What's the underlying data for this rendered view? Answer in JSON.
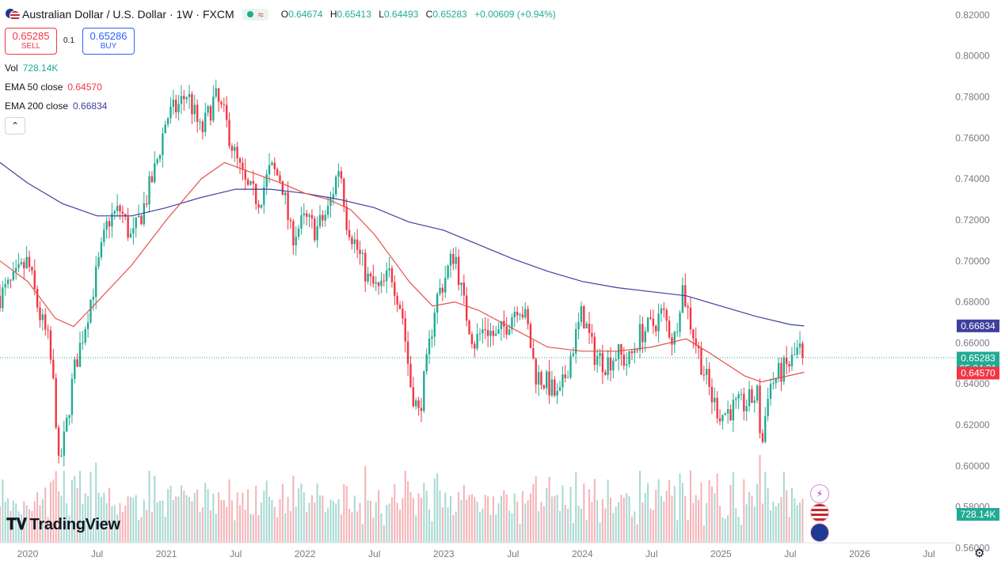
{
  "header": {
    "title": "Australian Dollar / U.S. Dollar · 1W · FXCM",
    "status_icon": "circle-dot",
    "wave_icon": "≈",
    "ohlc": {
      "o_label": "O",
      "o": "0.64674",
      "h_label": "H",
      "h": "0.65413",
      "l_label": "L",
      "l": "0.64493",
      "c_label": "C",
      "c": "0.65283",
      "change": "+0.00609 (+0.94%)"
    }
  },
  "trade": {
    "sell_price": "0.65285",
    "sell_label": "SELL",
    "spread": "0.1",
    "buy_price": "0.65286",
    "buy_label": "BUY"
  },
  "indicators": {
    "vol_label": "Vol",
    "vol_value": "728.14K",
    "ema50_label": "EMA 50 close",
    "ema50_value": "0.64570",
    "ema200_label": "EMA 200 close",
    "ema200_value": "0.66834"
  },
  "brand": {
    "logo_text": "TradingView"
  },
  "colors": {
    "up": "#22ab94",
    "down": "#f23645",
    "ema50": "#e5504a",
    "ema200": "#3f3f9f",
    "vol_up": "#a7d9d2",
    "vol_down": "#f5b2b6"
  },
  "chart_data": {
    "type": "candlestick",
    "symbol": "AUDUSD",
    "timeframe": "1W",
    "y_ticks": [
      "0.82000",
      "0.80000",
      "0.78000",
      "0.76000",
      "0.74000",
      "0.72000",
      "0.70000",
      "0.68000",
      "0.66000",
      "0.64000",
      "0.62000",
      "0.60000",
      "0.58000",
      "0.56000"
    ],
    "x_ticks": [
      {
        "label": "2020",
        "t": 2020.0
      },
      {
        "label": "Jul",
        "t": 2020.5
      },
      {
        "label": "2021",
        "t": 2021.0
      },
      {
        "label": "Jul",
        "t": 2021.5
      },
      {
        "label": "2022",
        "t": 2022.0
      },
      {
        "label": "Jul",
        "t": 2022.5
      },
      {
        "label": "2023",
        "t": 2023.0
      },
      {
        "label": "Jul",
        "t": 2023.5
      },
      {
        "label": "2024",
        "t": 2024.0
      },
      {
        "label": "Jul",
        "t": 2024.5
      },
      {
        "label": "2025",
        "t": 2025.0
      },
      {
        "label": "Jul",
        "t": 2025.5
      },
      {
        "label": "2026",
        "t": 2026.0
      },
      {
        "label": "Jul",
        "t": 2026.5
      }
    ],
    "x_range": [
      2019.8,
      2026.7
    ],
    "y_range": [
      0.5517,
      0.8273
    ],
    "close_path": [
      [
        2019.8,
        0.683
      ],
      [
        2019.9,
        0.69
      ],
      [
        2020.0,
        0.7
      ],
      [
        2020.08,
        0.675
      ],
      [
        2020.15,
        0.66
      ],
      [
        2020.2,
        0.63
      ],
      [
        2020.22,
        0.598
      ],
      [
        2020.27,
        0.615
      ],
      [
        2020.33,
        0.645
      ],
      [
        2020.4,
        0.665
      ],
      [
        2020.5,
        0.695
      ],
      [
        2020.58,
        0.72
      ],
      [
        2020.67,
        0.725
      ],
      [
        2020.75,
        0.71
      ],
      [
        2020.83,
        0.725
      ],
      [
        2020.92,
        0.745
      ],
      [
        2021.0,
        0.77
      ],
      [
        2021.08,
        0.775
      ],
      [
        2021.15,
        0.782
      ],
      [
        2021.25,
        0.762
      ],
      [
        2021.35,
        0.78
      ],
      [
        2021.42,
        0.77
      ],
      [
        2021.5,
        0.75
      ],
      [
        2021.58,
        0.735
      ],
      [
        2021.67,
        0.73
      ],
      [
        2021.75,
        0.745
      ],
      [
        2021.83,
        0.74
      ],
      [
        2021.9,
        0.712
      ],
      [
        2022.0,
        0.72
      ],
      [
        2022.08,
        0.715
      ],
      [
        2022.17,
        0.725
      ],
      [
        2022.25,
        0.748
      ],
      [
        2022.3,
        0.72
      ],
      [
        2022.38,
        0.705
      ],
      [
        2022.46,
        0.69
      ],
      [
        2022.54,
        0.685
      ],
      [
        2022.62,
        0.695
      ],
      [
        2022.7,
        0.675
      ],
      [
        2022.76,
        0.64
      ],
      [
        2022.82,
        0.625
      ],
      [
        2022.88,
        0.65
      ],
      [
        2022.94,
        0.68
      ],
      [
        2023.0,
        0.69
      ],
      [
        2023.08,
        0.705
      ],
      [
        2023.14,
        0.68
      ],
      [
        2023.22,
        0.66
      ],
      [
        2023.3,
        0.668
      ],
      [
        2023.38,
        0.662
      ],
      [
        2023.46,
        0.67
      ],
      [
        2023.54,
        0.68
      ],
      [
        2023.6,
        0.67
      ],
      [
        2023.66,
        0.645
      ],
      [
        2023.75,
        0.64
      ],
      [
        2023.83,
        0.632
      ],
      [
        2023.9,
        0.65
      ],
      [
        2024.0,
        0.675
      ],
      [
        2024.08,
        0.655
      ],
      [
        2024.17,
        0.65
      ],
      [
        2024.25,
        0.655
      ],
      [
        2024.33,
        0.65
      ],
      [
        2024.42,
        0.665
      ],
      [
        2024.5,
        0.668
      ],
      [
        2024.58,
        0.675
      ],
      [
        2024.66,
        0.66
      ],
      [
        2024.72,
        0.688
      ],
      [
        2024.78,
        0.67
      ],
      [
        2024.86,
        0.65
      ],
      [
        2024.94,
        0.632
      ],
      [
        2025.0,
        0.625
      ],
      [
        2025.08,
        0.628
      ],
      [
        2025.17,
        0.63
      ],
      [
        2025.27,
        0.635
      ],
      [
        2025.29,
        0.605
      ],
      [
        2025.34,
        0.638
      ],
      [
        2025.42,
        0.645
      ],
      [
        2025.5,
        0.65
      ],
      [
        2025.56,
        0.657
      ],
      [
        2025.6,
        0.653
      ]
    ],
    "ema50_path": [
      [
        2019.8,
        0.7
      ],
      [
        2020.0,
        0.69
      ],
      [
        2020.2,
        0.672
      ],
      [
        2020.33,
        0.668
      ],
      [
        2020.5,
        0.68
      ],
      [
        2020.75,
        0.698
      ],
      [
        2021.0,
        0.72
      ],
      [
        2021.25,
        0.74
      ],
      [
        2021.42,
        0.748
      ],
      [
        2021.58,
        0.744
      ],
      [
        2021.83,
        0.738
      ],
      [
        2022.0,
        0.733
      ],
      [
        2022.17,
        0.73
      ],
      [
        2022.33,
        0.725
      ],
      [
        2022.5,
        0.713
      ],
      [
        2022.75,
        0.69
      ],
      [
        2022.92,
        0.678
      ],
      [
        2023.08,
        0.68
      ],
      [
        2023.25,
        0.676
      ],
      [
        2023.5,
        0.667
      ],
      [
        2023.75,
        0.658
      ],
      [
        2024.0,
        0.656
      ],
      [
        2024.25,
        0.656
      ],
      [
        2024.5,
        0.658
      ],
      [
        2024.75,
        0.662
      ],
      [
        2024.92,
        0.655
      ],
      [
        2025.17,
        0.644
      ],
      [
        2025.29,
        0.641
      ],
      [
        2025.42,
        0.643
      ],
      [
        2025.6,
        0.6457
      ]
    ],
    "ema200_path": [
      [
        2019.8,
        0.748
      ],
      [
        2020.0,
        0.738
      ],
      [
        2020.25,
        0.728
      ],
      [
        2020.5,
        0.722
      ],
      [
        2020.75,
        0.722
      ],
      [
        2021.0,
        0.726
      ],
      [
        2021.25,
        0.731
      ],
      [
        2021.5,
        0.735
      ],
      [
        2021.75,
        0.735
      ],
      [
        2022.0,
        0.733
      ],
      [
        2022.25,
        0.73
      ],
      [
        2022.5,
        0.726
      ],
      [
        2022.75,
        0.719
      ],
      [
        2023.0,
        0.715
      ],
      [
        2023.25,
        0.708
      ],
      [
        2023.5,
        0.701
      ],
      [
        2023.75,
        0.695
      ],
      [
        2024.0,
        0.69
      ],
      [
        2024.25,
        0.687
      ],
      [
        2024.5,
        0.685
      ],
      [
        2024.75,
        0.683
      ],
      [
        2025.0,
        0.678
      ],
      [
        2025.25,
        0.673
      ],
      [
        2025.5,
        0.669
      ],
      [
        2025.6,
        0.6683
      ]
    ],
    "volume_range": [
      0,
      800
    ],
    "series": [
      {
        "name": "EMA 50 close",
        "last": 0.6457
      },
      {
        "name": "EMA 200 close",
        "last": 0.66834
      }
    ],
    "price_labels": {
      "ema200": "0.66834",
      "last": "0.65283",
      "countdown": "05:04:31",
      "ema50": "0.64570",
      "volume": "728.14K"
    },
    "last_price": 0.65283,
    "grid": false,
    "crosshair": false
  }
}
